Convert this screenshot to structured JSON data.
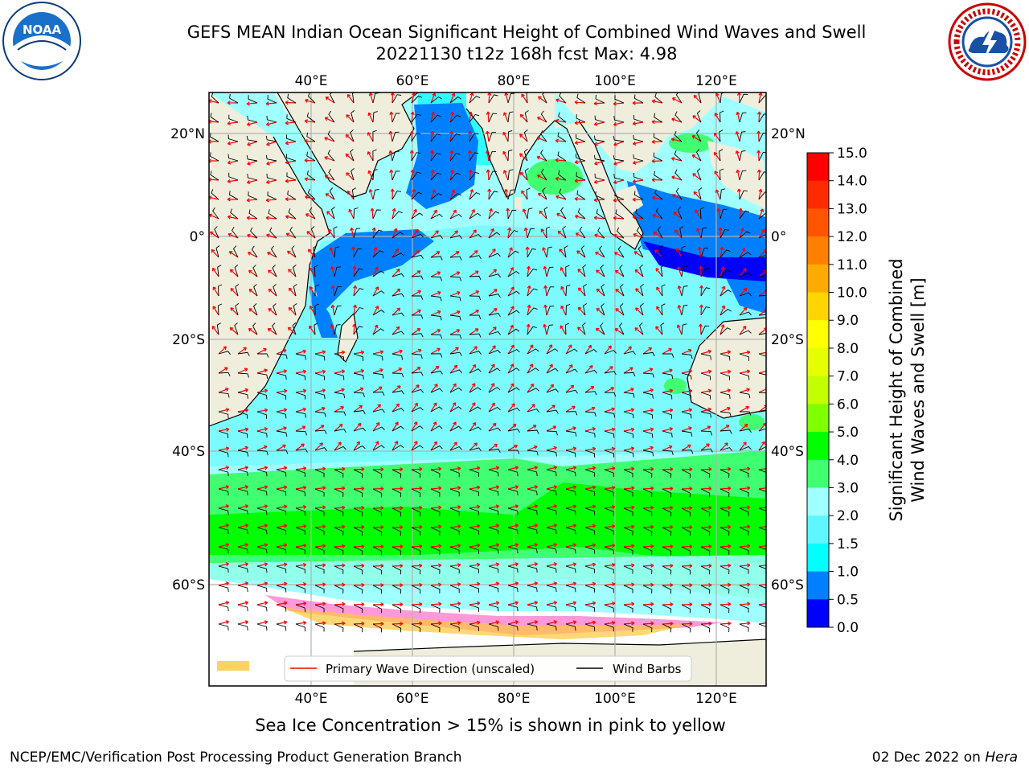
{
  "header": {
    "title_line1": "GEFS MEAN Indian Ocean Significant Height of Combined Wind Waves and Swell",
    "title_line2": "20221130 t12z 168h fcst   Max: 4.98"
  },
  "logos": {
    "left": "noaa-logo",
    "left_text": "NOAA",
    "right": "nws-logo"
  },
  "map": {
    "top_lon_labels": [
      "40°E",
      "60°E",
      "80°E",
      "100°E",
      "120°E"
    ],
    "bottom_lon_labels": [
      "40°E",
      "60°E",
      "80°E",
      "100°E",
      "120°E"
    ],
    "lat_labels": [
      "20°N",
      "0°",
      "20°S",
      "40°S",
      "60°S"
    ],
    "colors": {
      "land": "#efeedd",
      "ocean_base": "#a0ffff",
      "sea_ice_white": "#ffffff"
    }
  },
  "legend": {
    "wave_label": "Primary Wave Direction (unscaled)",
    "barb_label": "Wind Barbs",
    "wave_color": "#ff0000",
    "barb_color": "#000000"
  },
  "colorbar": {
    "title_line1": "Significant Height of Combined",
    "title_line2": "Wind Waves and Swell [m]",
    "ticks": [
      "15.0",
      "14.0",
      "13.0",
      "12.0",
      "11.0",
      "10.0",
      "9.0",
      "8.0",
      "7.0",
      "6.0",
      "5.0",
      "4.0",
      "3.0",
      "2.0",
      "1.5",
      "1.0",
      "0.5",
      "0.0"
    ],
    "colors_top_to_bottom": [
      "#ff0000",
      "#ff2a00",
      "#ff5500",
      "#ff7f00",
      "#ffaa00",
      "#ffd400",
      "#ffff00",
      "#e5ff00",
      "#c4ff00",
      "#7fff00",
      "#00ff00",
      "#40ff70",
      "#a0ffff",
      "#5ff7ff",
      "#00ffff",
      "#0080ff",
      "#0000ff"
    ]
  },
  "note": "Sea Ice Concentration > 15% is shown in pink to yellow",
  "footer": {
    "left": "NCEP/EMC/Verification Post Processing Product Generation Branch",
    "right_date": "02 Dec 2022 on",
    "right_host": "Hera"
  }
}
